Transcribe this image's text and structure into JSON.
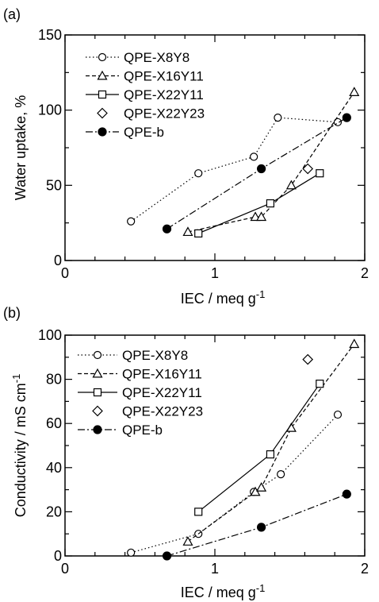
{
  "chart_data": [
    {
      "panel_label": "(a)",
      "type": "scatter",
      "xlabel": "IEC / meq g",
      "xlabel_sup": "-1",
      "ylabel": "Water uptake, %",
      "xlim": [
        0,
        2
      ],
      "ylim": [
        0,
        150
      ],
      "xticks": [
        0,
        1,
        2
      ],
      "yticks": [
        0,
        50,
        100,
        150
      ],
      "grid": false,
      "legend_position": "top-left",
      "series": [
        {
          "name": "QPE-X8Y8",
          "marker": "open-circle",
          "line": "dotted",
          "points": [
            [
              0.44,
              26
            ],
            [
              0.89,
              58
            ],
            [
              1.26,
              69
            ],
            [
              1.42,
              95
            ],
            [
              1.82,
              92
            ]
          ]
        },
        {
          "name": "QPE-X16Y11",
          "marker": "open-triangle",
          "line": "dashed",
          "points": [
            [
              0.82,
              19
            ],
            [
              1.27,
              29
            ],
            [
              1.31,
              29
            ],
            [
              1.51,
              50
            ],
            [
              1.93,
              112
            ]
          ]
        },
        {
          "name": "QPE-X22Y11",
          "marker": "open-square",
          "line": "solid",
          "points": [
            [
              0.89,
              18
            ],
            [
              1.37,
              38
            ],
            [
              1.7,
              58
            ]
          ]
        },
        {
          "name": "QPE-X22Y23",
          "marker": "open-diamond",
          "line": "none",
          "points": [
            [
              1.62,
              61
            ]
          ]
        },
        {
          "name": "QPE-b",
          "marker": "filled-circle",
          "line": "dash-dot",
          "points": [
            [
              0.68,
              21
            ],
            [
              1.31,
              61
            ],
            [
              1.88,
              95
            ]
          ]
        }
      ]
    },
    {
      "panel_label": "(b)",
      "type": "scatter",
      "xlabel": "IEC / meq g",
      "xlabel_sup": "-1",
      "ylabel": "Conductivity / mS cm",
      "ylabel_sup": "-1",
      "xlim": [
        0,
        2
      ],
      "ylim": [
        0,
        100
      ],
      "xticks": [
        0,
        1,
        2
      ],
      "yticks": [
        0,
        20,
        40,
        60,
        80,
        100
      ],
      "grid": false,
      "legend_position": "top-left",
      "series": [
        {
          "name": "QPE-X8Y8",
          "marker": "open-circle",
          "line": "dotted",
          "points": [
            [
              0.44,
              1.5
            ],
            [
              0.89,
              10
            ],
            [
              1.26,
              29
            ],
            [
              1.44,
              37
            ],
            [
              1.82,
              64
            ]
          ]
        },
        {
          "name": "QPE-X16Y11",
          "marker": "open-triangle",
          "line": "dashed",
          "points": [
            [
              0.82,
              6.5
            ],
            [
              1.27,
              29
            ],
            [
              1.31,
              31
            ],
            [
              1.51,
              58
            ],
            [
              1.93,
              96
            ]
          ]
        },
        {
          "name": "QPE-X22Y11",
          "marker": "open-square",
          "line": "solid",
          "points": [
            [
              0.89,
              20
            ],
            [
              1.37,
              46
            ],
            [
              1.7,
              78
            ]
          ]
        },
        {
          "name": "QPE-X22Y23",
          "marker": "open-diamond",
          "line": "none",
          "points": [
            [
              1.62,
              89
            ]
          ]
        },
        {
          "name": "QPE-b",
          "marker": "filled-circle",
          "line": "dash-dot",
          "points": [
            [
              0.68,
              0
            ],
            [
              1.31,
              13
            ],
            [
              1.88,
              28
            ]
          ]
        }
      ]
    }
  ]
}
